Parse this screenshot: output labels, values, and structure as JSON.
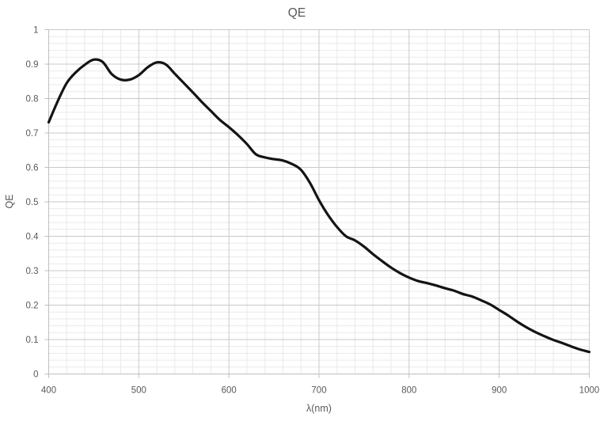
{
  "page": {
    "background": "#ffffff"
  },
  "chart_data": {
    "type": "line",
    "title": "QE",
    "xlabel": "λ(nm)",
    "ylabel": "QE",
    "xlim": [
      400,
      1000
    ],
    "ylim": [
      0,
      1
    ],
    "x_tick_values": [
      400,
      500,
      600,
      700,
      800,
      900,
      1000
    ],
    "x_tick_labels": [
      "400",
      "500",
      "600",
      "700",
      "800",
      "900",
      "1000"
    ],
    "y_tick_values": [
      0,
      0.1,
      0.2,
      0.3,
      0.4,
      0.5,
      0.6,
      0.7,
      0.8,
      0.9,
      1
    ],
    "y_tick_labels": [
      "0",
      "0.1",
      "0.2",
      "0.3",
      "0.4",
      "0.5",
      "0.6",
      "0.7",
      "0.8",
      "0.9",
      "1"
    ],
    "x_minor_unit": 20,
    "y_minor_unit": 0.02,
    "grid": {
      "major": true,
      "minor": true
    },
    "legend_position": "none",
    "colors": {
      "text": "#595959",
      "grid_major": "#c9c9c9",
      "grid_minor": "#e9e9e9",
      "axis": "#bfbfbf",
      "series": "#141414",
      "background": "#ffffff"
    },
    "series": [
      {
        "name": "QE",
        "x": [
          400,
          410,
          420,
          430,
          440,
          450,
          460,
          470,
          480,
          490,
          500,
          510,
          520,
          530,
          540,
          550,
          560,
          570,
          580,
          590,
          600,
          610,
          620,
          630,
          640,
          650,
          660,
          670,
          680,
          690,
          700,
          710,
          720,
          730,
          740,
          750,
          760,
          770,
          780,
          790,
          800,
          810,
          820,
          830,
          840,
          850,
          860,
          870,
          880,
          890,
          900,
          910,
          920,
          930,
          940,
          950,
          960,
          970,
          980,
          990,
          1000
        ],
        "y": [
          0.731,
          0.792,
          0.845,
          0.876,
          0.898,
          0.913,
          0.906,
          0.871,
          0.855,
          0.855,
          0.868,
          0.891,
          0.905,
          0.899,
          0.872,
          0.845,
          0.818,
          0.79,
          0.764,
          0.738,
          0.717,
          0.694,
          0.668,
          0.638,
          0.629,
          0.624,
          0.62,
          0.61,
          0.593,
          0.555,
          0.505,
          0.462,
          0.427,
          0.4,
          0.388,
          0.37,
          0.348,
          0.328,
          0.309,
          0.293,
          0.28,
          0.27,
          0.264,
          0.257,
          0.249,
          0.242,
          0.232,
          0.225,
          0.214,
          0.202,
          0.186,
          0.17,
          0.152,
          0.136,
          0.122,
          0.11,
          0.099,
          0.09,
          0.08,
          0.071,
          0.064
        ]
      }
    ]
  }
}
